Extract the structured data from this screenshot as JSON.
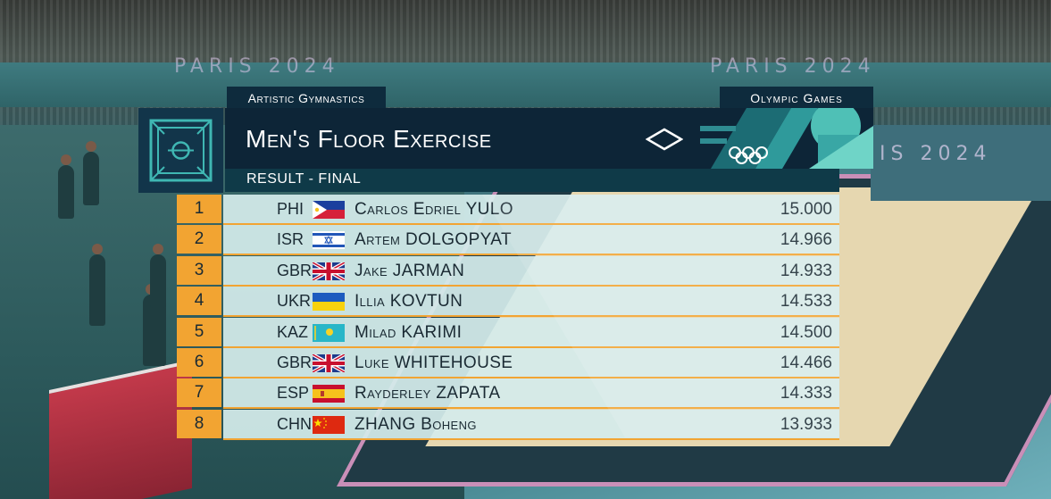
{
  "arena": {
    "stand_text_1": "PARIS 2024",
    "stand_text_2": "PARIS 2024",
    "right_text": "IS 2024"
  },
  "header": {
    "event_tag": "Artistic Gymnastics",
    "games_tag": "Olympic Games",
    "title": "Men's Floor Exercise",
    "subtitle": "RESULT - FINAL"
  },
  "colors": {
    "accent_orange": "#f2a432",
    "navy": "#0d2537",
    "row_bg": "#d4eceb",
    "teal": "#3fb7b3"
  },
  "results": [
    {
      "rank": "1",
      "noc": "PHI",
      "flag": "phi-flag",
      "name": "Carlos Edriel YULO",
      "score": "15.000"
    },
    {
      "rank": "2",
      "noc": "ISR",
      "flag": "isr-flag",
      "name": "Artem DOLGOPYAT",
      "score": "14.966"
    },
    {
      "rank": "3",
      "noc": "GBR",
      "flag": "gbr-flag",
      "name": "Jake JARMAN",
      "score": "14.933"
    },
    {
      "rank": "4",
      "noc": "UKR",
      "flag": "ukr-flag",
      "name": "Illia KOVTUN",
      "score": "14.533"
    },
    {
      "rank": "5",
      "noc": "KAZ",
      "flag": "kaz-flag",
      "name": "Milad KARIMI",
      "score": "14.500"
    },
    {
      "rank": "6",
      "noc": "GBR",
      "flag": "gbr-flag",
      "name": "Luke WHITEHOUSE",
      "score": "14.466"
    },
    {
      "rank": "7",
      "noc": "ESP",
      "flag": "esp-flag",
      "name": "Rayderley ZAPATA",
      "score": "14.333"
    },
    {
      "rank": "8",
      "noc": "CHN",
      "flag": "chn-flag",
      "name": "ZHANG Boheng",
      "score": "13.933"
    }
  ]
}
